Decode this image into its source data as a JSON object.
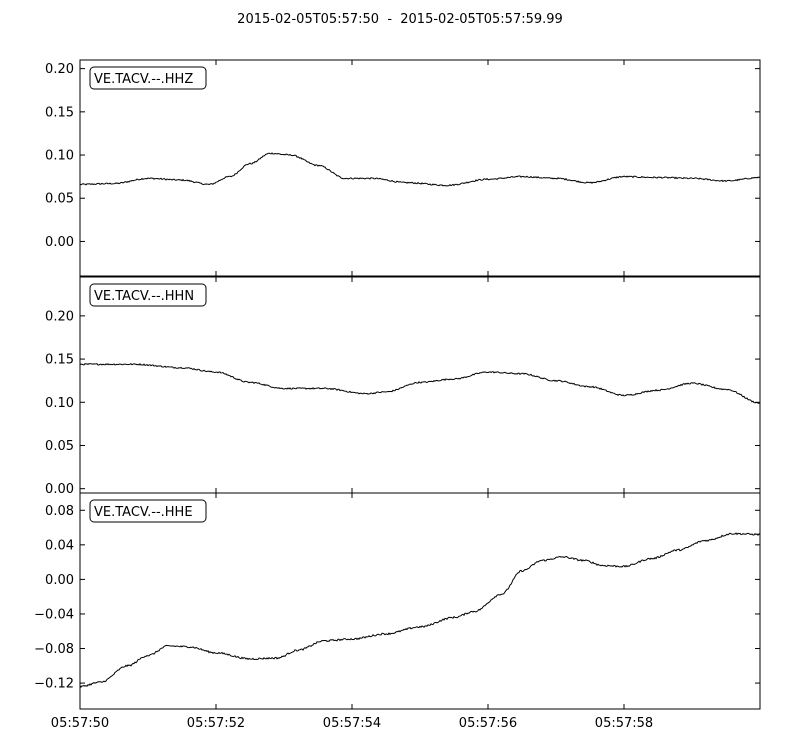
{
  "chart_data": {
    "type": "line",
    "title": "2015-02-05T05:57:50  -  2015-02-05T05:57:59.99",
    "x_ticks": [
      "05:57:50",
      "05:57:52",
      "05:57:54",
      "05:57:56",
      "05:57:58"
    ],
    "x_range_seconds": [
      0,
      10
    ],
    "x_tick_seconds": [
      0,
      2,
      4,
      6,
      8
    ],
    "panels": [
      {
        "label": "VE.TACV.--.HHZ",
        "ylim": [
          -0.04,
          0.21
        ],
        "y_ticks": [
          0.0,
          0.05,
          0.1,
          0.15,
          0.2
        ],
        "y_tick_labels": [
          "0.00",
          "0.05",
          "0.10",
          "0.15",
          "0.20"
        ],
        "noise": 0.0008,
        "series": [
          [
            0,
            0.066
          ],
          [
            0.5,
            0.067
          ],
          [
            1.0,
            0.073
          ],
          [
            1.5,
            0.071
          ],
          [
            1.9,
            0.066
          ],
          [
            2.2,
            0.075
          ],
          [
            2.5,
            0.09
          ],
          [
            2.8,
            0.102
          ],
          [
            3.1,
            0.1
          ],
          [
            3.5,
            0.088
          ],
          [
            3.9,
            0.073
          ],
          [
            4.3,
            0.073
          ],
          [
            4.8,
            0.068
          ],
          [
            5.4,
            0.065
          ],
          [
            6.0,
            0.072
          ],
          [
            6.5,
            0.075
          ],
          [
            7.0,
            0.073
          ],
          [
            7.5,
            0.068
          ],
          [
            8.0,
            0.075
          ],
          [
            8.5,
            0.074
          ],
          [
            9.0,
            0.073
          ],
          [
            9.5,
            0.07
          ],
          [
            10.0,
            0.074
          ]
        ]
      },
      {
        "label": "VE.TACV.--.HHN",
        "ylim": [
          -0.005,
          0.245
        ],
        "y_ticks": [
          0.0,
          0.05,
          0.1,
          0.15,
          0.2
        ],
        "y_tick_labels": [
          "0.00",
          "0.05",
          "0.10",
          "0.15",
          "0.20"
        ],
        "noise": 0.0008,
        "series": [
          [
            0,
            0.144
          ],
          [
            0.8,
            0.144
          ],
          [
            1.5,
            0.14
          ],
          [
            2.0,
            0.135
          ],
          [
            2.5,
            0.123
          ],
          [
            3.0,
            0.116
          ],
          [
            3.6,
            0.116
          ],
          [
            4.2,
            0.11
          ],
          [
            4.5,
            0.112
          ],
          [
            5.0,
            0.123
          ],
          [
            5.5,
            0.127
          ],
          [
            6.0,
            0.135
          ],
          [
            6.5,
            0.133
          ],
          [
            7.0,
            0.125
          ],
          [
            7.5,
            0.118
          ],
          [
            8.0,
            0.108
          ],
          [
            8.5,
            0.114
          ],
          [
            9.0,
            0.122
          ],
          [
            9.5,
            0.115
          ],
          [
            10.0,
            0.099
          ]
        ]
      },
      {
        "label": "VE.TACV.--.HHE",
        "ylim": [
          -0.15,
          0.1
        ],
        "y_ticks": [
          -0.12,
          -0.08,
          -0.04,
          0.0,
          0.04,
          0.08
        ],
        "y_tick_labels": [
          "−0.12",
          "−0.08",
          "−0.04",
          "0.00",
          "0.04",
          "0.08"
        ],
        "noise": 0.001,
        "series": [
          [
            0,
            -0.124
          ],
          [
            0.3,
            -0.119
          ],
          [
            0.7,
            -0.1
          ],
          [
            1.0,
            -0.088
          ],
          [
            1.3,
            -0.077
          ],
          [
            1.6,
            -0.078
          ],
          [
            2.0,
            -0.085
          ],
          [
            2.5,
            -0.092
          ],
          [
            2.9,
            -0.091
          ],
          [
            3.2,
            -0.082
          ],
          [
            3.6,
            -0.071
          ],
          [
            4.0,
            -0.069
          ],
          [
            4.5,
            -0.063
          ],
          [
            5.0,
            -0.055
          ],
          [
            5.5,
            -0.044
          ],
          [
            5.8,
            -0.037
          ],
          [
            6.2,
            -0.017
          ],
          [
            6.5,
            0.01
          ],
          [
            6.8,
            0.022
          ],
          [
            7.1,
            0.026
          ],
          [
            7.4,
            0.022
          ],
          [
            7.7,
            0.016
          ],
          [
            8.0,
            0.015
          ],
          [
            8.4,
            0.024
          ],
          [
            8.8,
            0.034
          ],
          [
            9.2,
            0.045
          ],
          [
            9.6,
            0.053
          ],
          [
            10.0,
            0.052
          ]
        ]
      }
    ]
  }
}
